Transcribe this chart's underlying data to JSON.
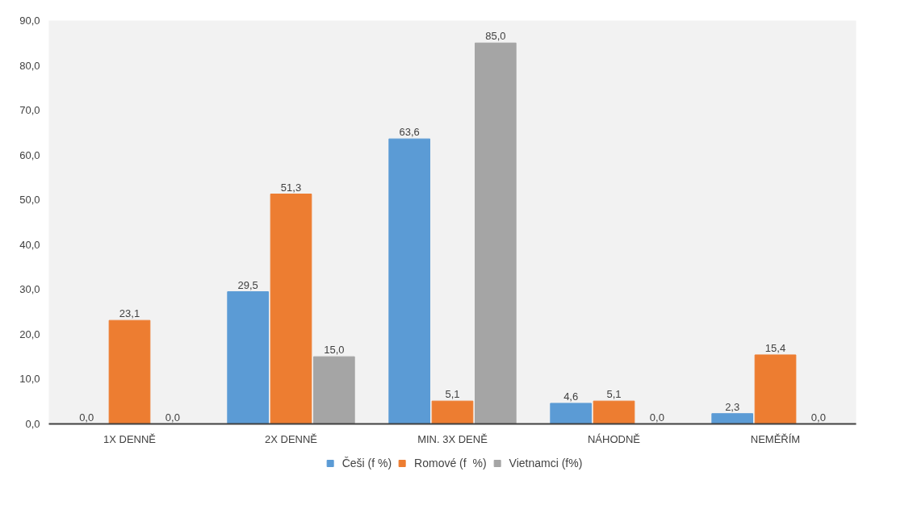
{
  "chart_data": {
    "type": "bar",
    "categories": [
      "1X DENNĚ",
      "2X DENNĚ",
      "MIN. 3X DENĚ",
      "NÁHODNĚ",
      "NEMĚŘÍM"
    ],
    "series": [
      {
        "name": "Češi (f %)",
        "color": "#5b9bd5",
        "values": [
          0.0,
          29.5,
          63.6,
          4.6,
          2.3
        ],
        "value_labels": [
          "0,0",
          "29,5",
          "63,6",
          "4,6",
          "2,3"
        ]
      },
      {
        "name": "Romové (f  %)",
        "color": "#ed7d31",
        "values": [
          23.1,
          51.3,
          5.1,
          5.1,
          15.4
        ],
        "value_labels": [
          "23,1",
          "51,3",
          "5,1",
          "5,1",
          "15,4"
        ]
      },
      {
        "name": "Vietnamci (f%)",
        "color": "#a5a5a5",
        "values": [
          0.0,
          15.0,
          85.0,
          0.0,
          0.0
        ],
        "value_labels": [
          "0,0",
          "15,0",
          "85,0",
          "0,0",
          "0,0"
        ]
      }
    ],
    "ylim": [
      0,
      90
    ],
    "yticks": [
      {
        "value": 0,
        "label": "0,0"
      },
      {
        "value": 10,
        "label": "10,0"
      },
      {
        "value": 20,
        "label": "20,0"
      },
      {
        "value": 30,
        "label": "30,0"
      },
      {
        "value": 40,
        "label": "40,0"
      },
      {
        "value": 50,
        "label": "50,0"
      },
      {
        "value": 60,
        "label": "60,0"
      },
      {
        "value": 70,
        "label": "70,0"
      },
      {
        "value": 80,
        "label": "80,0"
      },
      {
        "value": 90,
        "label": "90,0"
      }
    ],
    "grid": false,
    "legend": "bottom"
  }
}
